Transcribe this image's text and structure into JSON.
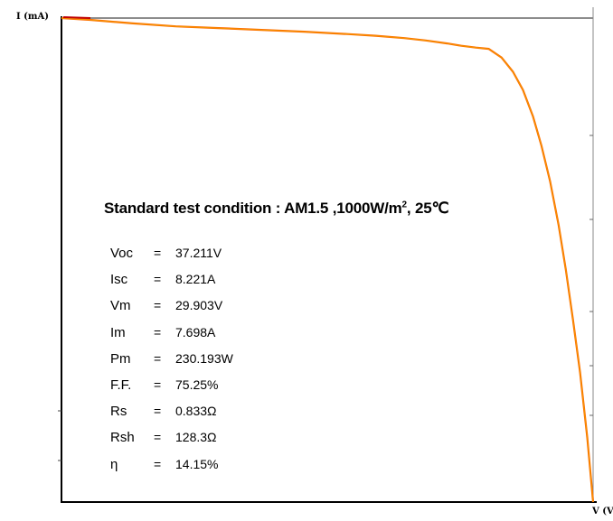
{
  "chart_data": {
    "type": "line",
    "title": "",
    "xlabel": "V (V)",
    "ylabel": "I (mA)",
    "xlim": [
      0,
      37.211
    ],
    "ylim": [
      0,
      8.221
    ],
    "grid": false,
    "series": [
      {
        "x": [
          0,
          2,
          5,
          8,
          11,
          14,
          17,
          20,
          22,
          24,
          25.5,
          27,
          28,
          29,
          29.903,
          30.8,
          31.6,
          32.3,
          33,
          33.6,
          34.2,
          34.8,
          35.3,
          35.8,
          36.3,
          36.8,
          37.211
        ],
        "values": [
          8.221,
          8.19,
          8.13,
          8.08,
          8.05,
          8.02,
          7.99,
          7.95,
          7.92,
          7.88,
          7.84,
          7.79,
          7.75,
          7.72,
          7.698,
          7.55,
          7.31,
          7.0,
          6.55,
          6.05,
          5.45,
          4.7,
          3.95,
          3.1,
          2.2,
          1.1,
          0
        ]
      }
    ],
    "annotation": {
      "condition_text": "Standard test condition : AM1.5 ,1000W/m",
      "condition_sup": "2",
      "condition_tail": ", 25℃",
      "params": [
        {
          "name": "Voc",
          "eq": "=",
          "value": "37.211V"
        },
        {
          "name": "Isc",
          "eq": "=",
          "value": "8.221A"
        },
        {
          "name": "Vm",
          "eq": "=",
          "value": "29.903V"
        },
        {
          "name": "Im",
          "eq": "=",
          "value": "7.698A"
        },
        {
          "name": "Pm",
          "eq": "=",
          "value": "230.193W"
        },
        {
          "name": "F.F.",
          "eq": "=",
          "value": "75.25%"
        },
        {
          "name": "Rs",
          "eq": "=",
          "value": "0.833Ω"
        },
        {
          "name": "Rsh",
          "eq": "=",
          "value": "128.3Ω"
        },
        {
          "name": "η",
          "eq": "=",
          "value": "14.15%"
        }
      ]
    }
  }
}
